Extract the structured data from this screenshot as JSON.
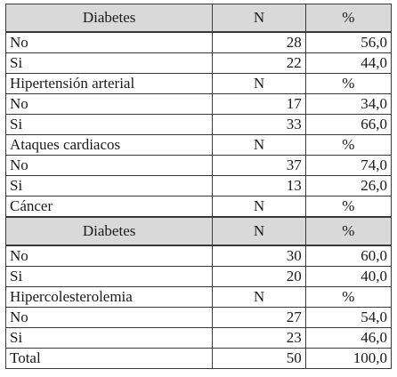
{
  "sections": [
    {
      "kind": "head",
      "label": "Diabetes",
      "n_header": "N",
      "pct_header": "%",
      "rows": [
        {
          "label": "No",
          "n": "28",
          "pct": "56,0"
        },
        {
          "label": "Si",
          "n": "22",
          "pct": "44,0"
        }
      ]
    },
    {
      "kind": "sub",
      "label": "Hipertensión arterial",
      "n_header": "N",
      "pct_header": "%",
      "rows": [
        {
          "label": "No",
          "n": "17",
          "pct": "34,0"
        },
        {
          "label": "Si",
          "n": "33",
          "pct": "66,0"
        }
      ]
    },
    {
      "kind": "sub",
      "label": "Ataques cardiacos",
      "n_header": "N",
      "pct_header": "%",
      "rows": [
        {
          "label": "No",
          "n": "37",
          "pct": "74,0"
        },
        {
          "label": "Si",
          "n": "13",
          "pct": "26,0"
        }
      ]
    },
    {
      "kind": "sub",
      "label": "Cáncer",
      "n_header": "N",
      "pct_header": "%",
      "rows": []
    },
    {
      "kind": "head",
      "label": "Diabetes",
      "n_header": "N",
      "pct_header": "%",
      "rows": [
        {
          "label": "No",
          "n": "30",
          "pct": "60,0"
        },
        {
          "label": "Si",
          "n": "20",
          "pct": "40,0"
        }
      ]
    },
    {
      "kind": "sub",
      "label": "Hipercolesterolemia",
      "n_header": "N",
      "pct_header": "%",
      "rows": [
        {
          "label": "No",
          "n": "27",
          "pct": "54,0"
        },
        {
          "label": "Si",
          "n": "23",
          "pct": "46,0"
        }
      ]
    }
  ],
  "total": {
    "label": "Total",
    "n": "50",
    "pct": "100,0"
  },
  "colors": {
    "header_bg": "#d9d9d9",
    "border": "#3a3a3a",
    "text": "#1a1a1a"
  }
}
